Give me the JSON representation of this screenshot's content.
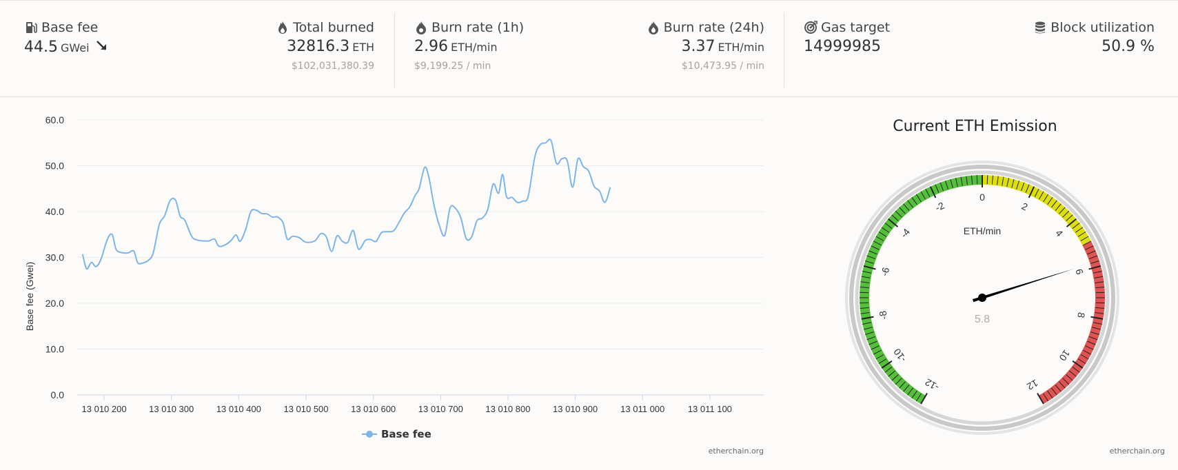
{
  "stats": {
    "base_fee": {
      "label": "Base fee",
      "value": "44.5",
      "unit": "GWei",
      "icon": "gas-pump-icon",
      "trend_icon": "arrow-down-right-icon"
    },
    "total_burned": {
      "label": "Total burned",
      "value": "32816.3",
      "unit": "ETH",
      "usd": "$102,031,380.39",
      "icon": "flame-icon"
    },
    "burn_rate_1h": {
      "label": "Burn rate (1h)",
      "value": "2.96",
      "unit": "ETH/min",
      "usd": "$9,199.25 / min",
      "icon": "fire-icon"
    },
    "burn_rate_24h": {
      "label": "Burn rate (24h)",
      "value": "3.37",
      "unit": "ETH/min",
      "usd": "$10,473.95 / min",
      "icon": "fire-alt-icon"
    },
    "gas_target": {
      "label": "Gas target",
      "value": "14999985",
      "icon": "target-icon"
    },
    "block_utilization": {
      "label": "Block utilization",
      "value": "50.9 %",
      "icon": "database-icon"
    }
  },
  "chart_data": {
    "type": "line",
    "title": "",
    "xlabel": "",
    "ylabel": "Base fee (Gwei)",
    "ylim": [
      0,
      60
    ],
    "yticks": [
      "0.0",
      "10.0",
      "20.0",
      "30.0",
      "40.0",
      "50.0",
      "60.0"
    ],
    "xlim": [
      13010160,
      13011180
    ],
    "xticks": [
      "13 010 200",
      "13 010 300",
      "13 010 400",
      "13 010 500",
      "13 010 600",
      "13 010 700",
      "13 010 800",
      "13 010 900",
      "13 011 000",
      "13 011 100"
    ],
    "grid": true,
    "legend": "bottom-center",
    "series": [
      {
        "name": "Base fee",
        "color": "#7cb5ec",
        "points": [
          [
            13010168,
            30.7
          ],
          [
            13010174,
            27.5
          ],
          [
            13010181,
            28.9
          ],
          [
            13010188,
            28.0
          ],
          [
            13010195,
            29.5
          ],
          [
            13010205,
            34.0
          ],
          [
            13010212,
            35.0
          ],
          [
            13010218,
            31.7
          ],
          [
            13010228,
            31.0
          ],
          [
            13010236,
            31.0
          ],
          [
            13010244,
            31.4
          ],
          [
            13010250,
            28.8
          ],
          [
            13010258,
            28.8
          ],
          [
            13010266,
            29.4
          ],
          [
            13010273,
            31.0
          ],
          [
            13010282,
            37.2
          ],
          [
            13010290,
            39.1
          ],
          [
            13010298,
            42.4
          ],
          [
            13010306,
            42.5
          ],
          [
            13010313,
            39.0
          ],
          [
            13010320,
            38.1
          ],
          [
            13010330,
            34.6
          ],
          [
            13010338,
            33.8
          ],
          [
            13010348,
            33.6
          ],
          [
            13010356,
            33.6
          ],
          [
            13010364,
            34.0
          ],
          [
            13010370,
            32.5
          ],
          [
            13010378,
            32.6
          ],
          [
            13010388,
            33.6
          ],
          [
            13010396,
            34.9
          ],
          [
            13010402,
            33.5
          ],
          [
            13010410,
            36.0
          ],
          [
            13010418,
            40.0
          ],
          [
            13010426,
            40.3
          ],
          [
            13010434,
            39.6
          ],
          [
            13010442,
            39.5
          ],
          [
            13010450,
            38.8
          ],
          [
            13010458,
            38.8
          ],
          [
            13010466,
            37.5
          ],
          [
            13010472,
            34.0
          ],
          [
            13010480,
            34.6
          ],
          [
            13010490,
            34.3
          ],
          [
            13010498,
            33.4
          ],
          [
            13010506,
            33.3
          ],
          [
            13010514,
            33.7
          ],
          [
            13010522,
            35.2
          ],
          [
            13010530,
            34.5
          ],
          [
            13010538,
            31.3
          ],
          [
            13010546,
            34.7
          ],
          [
            13010554,
            33.5
          ],
          [
            13010562,
            33.3
          ],
          [
            13010570,
            35.9
          ],
          [
            13010578,
            31.8
          ],
          [
            13010588,
            33.7
          ],
          [
            13010596,
            33.9
          ],
          [
            13010604,
            33.5
          ],
          [
            13010612,
            35.4
          ],
          [
            13010620,
            35.6
          ],
          [
            13010630,
            35.8
          ],
          [
            13010638,
            37.6
          ],
          [
            13010646,
            39.7
          ],
          [
            13010654,
            41.0
          ],
          [
            13010662,
            43.5
          ],
          [
            13010668,
            45.0
          ],
          [
            13010676,
            49.6
          ],
          [
            13010682,
            47.8
          ],
          [
            13010690,
            41.5
          ],
          [
            13010698,
            37.0
          ],
          [
            13010706,
            34.8
          ],
          [
            13010714,
            40.8
          ],
          [
            13010722,
            40.7
          ],
          [
            13010730,
            38.6
          ],
          [
            13010738,
            34.1
          ],
          [
            13010746,
            34.5
          ],
          [
            13010754,
            38.0
          ],
          [
            13010762,
            38.6
          ],
          [
            13010770,
            40.5
          ],
          [
            13010778,
            46.0
          ],
          [
            13010786,
            44.0
          ],
          [
            13010792,
            48.1
          ],
          [
            13010798,
            43.2
          ],
          [
            13010806,
            43.1
          ],
          [
            13010814,
            42.0
          ],
          [
            13010822,
            42.3
          ],
          [
            13010830,
            43.3
          ],
          [
            13010840,
            52.0
          ],
          [
            13010848,
            54.6
          ],
          [
            13010856,
            55.0
          ],
          [
            13010864,
            55.5
          ],
          [
            13010872,
            50.5
          ],
          [
            13010880,
            51.5
          ],
          [
            13010888,
            51.1
          ],
          [
            13010896,
            45.3
          ],
          [
            13010904,
            51.5
          ],
          [
            13010912,
            49.8
          ],
          [
            13010920,
            48.8
          ],
          [
            13010928,
            45.5
          ],
          [
            13010936,
            44.5
          ],
          [
            13010944,
            42.0
          ],
          [
            13010952,
            45.3
          ]
        ]
      }
    ]
  },
  "legend": {
    "label": "Base fee"
  },
  "gauge": {
    "title": "Current ETH Emission",
    "unit_label": "ETH/min",
    "value": 5.8,
    "value_label": "5.8",
    "min": -12,
    "max": 12,
    "tick_labels": [
      "-12",
      "-10",
      "-8",
      "-6",
      "-4",
      "-2",
      "0",
      "2",
      "4",
      "6",
      "8",
      "10",
      "12"
    ],
    "bands": [
      {
        "from": -12,
        "to": 0,
        "color": "#55bf3b"
      },
      {
        "from": 0,
        "to": 5,
        "color": "#dddf0d"
      },
      {
        "from": 5,
        "to": 12,
        "color": "#df5353"
      }
    ]
  },
  "credits": {
    "chart": "etherchain.org",
    "gauge": "etherchain.org"
  }
}
